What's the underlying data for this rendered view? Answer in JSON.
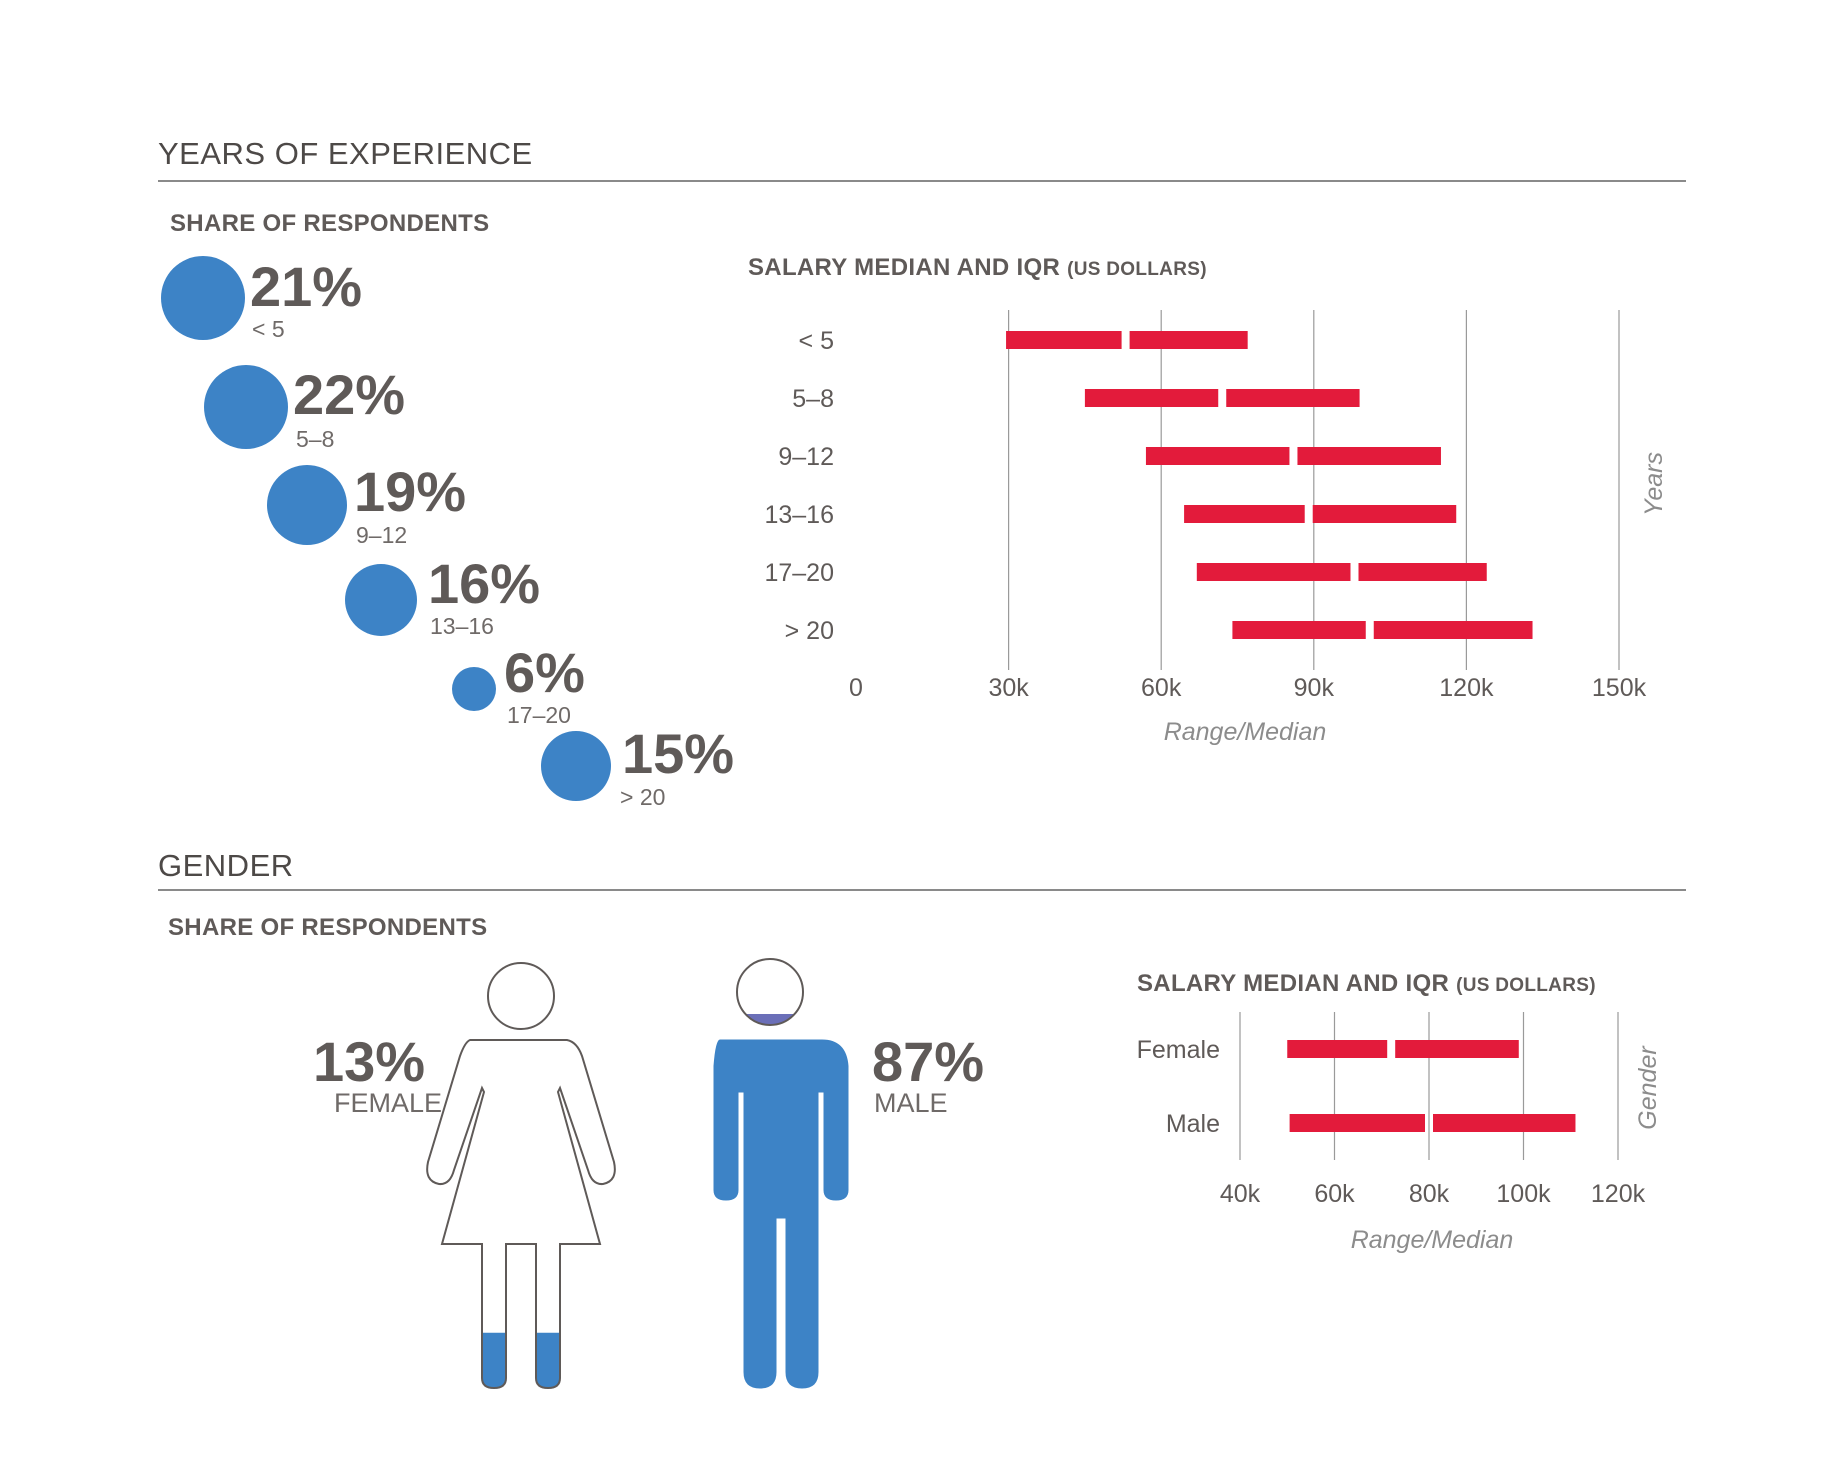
{
  "sections": {
    "experience_title": "YEARS OF EXPERIENCE",
    "gender_title": "GENDER",
    "share_title": "SHARE OF RESPONDENTS"
  },
  "experience_share": [
    {
      "pct": "21%",
      "label": "< 5",
      "value": 21
    },
    {
      "pct": "22%",
      "label": "5–8",
      "value": 22
    },
    {
      "pct": "19%",
      "label": "9–12",
      "value": 19
    },
    {
      "pct": "16%",
      "label": "13–16",
      "value": 16
    },
    {
      "pct": "6%",
      "label": "17–20",
      "value": 6
    },
    {
      "pct": "15%",
      "label": "> 20",
      "value": 15
    }
  ],
  "gender_share": {
    "female": {
      "pct": "13%",
      "label": "FEMALE",
      "value": 13
    },
    "male": {
      "pct": "87%",
      "label": "MALE",
      "value": 87
    }
  },
  "colors": {
    "bubble": "#3d83c6",
    "bar": "#e31b3b",
    "grid": "#9a9a9a",
    "figure_fill": "#3d83c6",
    "figure_stroke": "#5f5a58",
    "head_band": "#6b6fb8"
  },
  "chart_data": [
    {
      "type": "bar",
      "title": "SALARY MEDIAN AND IQR",
      "title_suffix": "(US DOLLARS)",
      "xlabel": "Range/Median",
      "ylabel": "Years",
      "xlim": [
        0,
        150000
      ],
      "xticks": [
        0,
        30000,
        60000,
        90000,
        120000,
        150000
      ],
      "xtick_labels": [
        "0",
        "30k",
        "60k",
        "90k",
        "120k",
        "150k"
      ],
      "grid": true,
      "categories": [
        "< 5",
        "5–8",
        "9–12",
        "13–16",
        "17–20",
        "> 20"
      ],
      "series": [
        {
          "stat": "IQR low",
          "values": [
            29500,
            45000,
            57000,
            64500,
            67000,
            74000
          ]
        },
        {
          "stat": "median",
          "values": [
            53000,
            72000,
            86000,
            89000,
            98000,
            101000
          ]
        },
        {
          "stat": "IQR high",
          "values": [
            77000,
            99000,
            115000,
            118000,
            124000,
            133000
          ]
        }
      ]
    },
    {
      "type": "bar",
      "title": "SALARY MEDIAN AND IQR",
      "title_suffix": "(US DOLLARS)",
      "xlabel": "Range/Median",
      "ylabel": "Gender",
      "xlim": [
        40000,
        120000
      ],
      "xticks": [
        40000,
        60000,
        80000,
        100000,
        120000
      ],
      "xtick_labels": [
        "40k",
        "60k",
        "80k",
        "100k",
        "120k"
      ],
      "grid": true,
      "categories": [
        "Female",
        "Male"
      ],
      "series": [
        {
          "stat": "IQR low",
          "values": [
            50000,
            50500
          ]
        },
        {
          "stat": "median",
          "values": [
            72000,
            80000
          ]
        },
        {
          "stat": "IQR high",
          "values": [
            99000,
            111000
          ]
        }
      ]
    }
  ]
}
